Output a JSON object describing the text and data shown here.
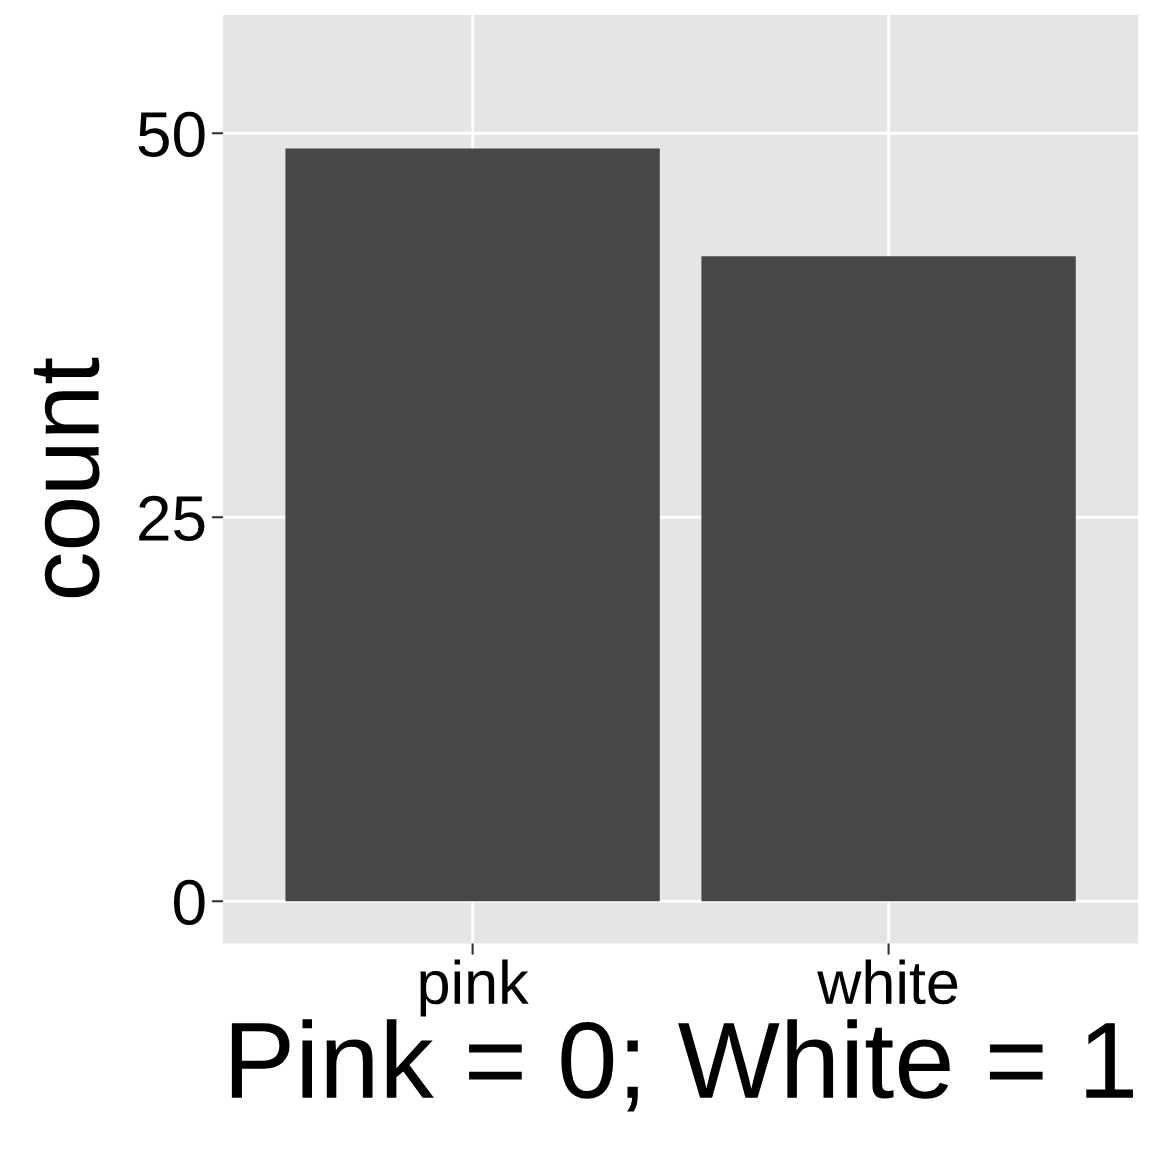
{
  "chart_data": {
    "type": "bar",
    "xlabel": "Pink = 0; White = 1",
    "ylabel": "count",
    "categories": [
      "pink",
      "white"
    ],
    "values": [
      49,
      42
    ],
    "color": "#474747",
    "ylim": [
      -2.75,
      57.7
    ],
    "yticks": [
      0,
      25,
      50
    ],
    "grid": true,
    "legend": false
  }
}
